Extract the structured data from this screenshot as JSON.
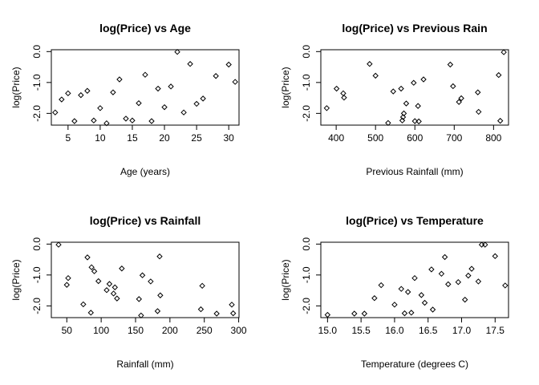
{
  "chart_data": [
    {
      "type": "scatter",
      "title": "log(Price) vs Age",
      "xlabel": "Age (years)",
      "ylabel": "log(Price)",
      "xlim": [
        2.4,
        31.6
      ],
      "ylim": [
        -2.38,
        0.06
      ],
      "xticks": [
        5,
        10,
        15,
        20,
        25,
        30
      ],
      "yticks": [
        -2.0,
        -1.0,
        0.0
      ],
      "ytick_labels": [
        "-2.0",
        "-1.0",
        "0.0"
      ],
      "points": [
        {
          "x": 3,
          "y": -1.97
        },
        {
          "x": 4,
          "y": -1.55
        },
        {
          "x": 5,
          "y": -1.35
        },
        {
          "x": 6,
          "y": -2.25
        },
        {
          "x": 7,
          "y": -1.41
        },
        {
          "x": 8,
          "y": -1.27
        },
        {
          "x": 9,
          "y": -2.23
        },
        {
          "x": 10,
          "y": -1.83
        },
        {
          "x": 11,
          "y": -2.32
        },
        {
          "x": 12,
          "y": -1.32
        },
        {
          "x": 13,
          "y": -0.9
        },
        {
          "x": 14,
          "y": -2.17
        },
        {
          "x": 15,
          "y": -2.23
        },
        {
          "x": 16,
          "y": -1.67
        },
        {
          "x": 17,
          "y": -0.75
        },
        {
          "x": 18,
          "y": -2.25
        },
        {
          "x": 19,
          "y": -1.2
        },
        {
          "x": 20,
          "y": -1.8
        },
        {
          "x": 21,
          "y": -1.13
        },
        {
          "x": 22,
          "y": -0.01
        },
        {
          "x": 23,
          "y": -1.97
        },
        {
          "x": 24,
          "y": -0.4
        },
        {
          "x": 25,
          "y": -1.69
        },
        {
          "x": 26,
          "y": -1.52
        },
        {
          "x": 28,
          "y": -0.79
        },
        {
          "x": 30,
          "y": -0.42
        },
        {
          "x": 31,
          "y": -0.98
        }
      ]
    },
    {
      "type": "scatter",
      "title": "log(Price) vs Previous Rain",
      "xlabel": "Previous Rainfall (mm)",
      "ylabel": "log(Price)",
      "xlim": [
        361,
        838
      ],
      "ylim": [
        -2.38,
        0.06
      ],
      "xticks": [
        400,
        500,
        600,
        700,
        800
      ],
      "yticks": [
        -2.0,
        -1.0,
        0.0
      ],
      "ytick_labels": [
        "-2.0",
        "-1.0",
        "0.0"
      ],
      "points": [
        {
          "x": 376,
          "y": -1.83
        },
        {
          "x": 401,
          "y": -1.2
        },
        {
          "x": 418,
          "y": -1.35
        },
        {
          "x": 420,
          "y": -1.49
        },
        {
          "x": 485,
          "y": -0.4
        },
        {
          "x": 500,
          "y": -0.78
        },
        {
          "x": 532,
          "y": -2.31
        },
        {
          "x": 545,
          "y": -1.29
        },
        {
          "x": 565,
          "y": -1.2
        },
        {
          "x": 568,
          "y": -2.23
        },
        {
          "x": 570,
          "y": -2.12
        },
        {
          "x": 572,
          "y": -2.0
        },
        {
          "x": 578,
          "y": -1.68
        },
        {
          "x": 597,
          "y": -1.01
        },
        {
          "x": 600,
          "y": -2.25
        },
        {
          "x": 608,
          "y": -1.76
        },
        {
          "x": 610,
          "y": -2.26
        },
        {
          "x": 622,
          "y": -0.9
        },
        {
          "x": 690,
          "y": -0.42
        },
        {
          "x": 697,
          "y": -1.12
        },
        {
          "x": 712,
          "y": -1.63
        },
        {
          "x": 718,
          "y": -1.51
        },
        {
          "x": 760,
          "y": -1.32
        },
        {
          "x": 762,
          "y": -1.95
        },
        {
          "x": 813,
          "y": -0.76
        },
        {
          "x": 817,
          "y": -2.24
        },
        {
          "x": 826,
          "y": -0.02
        }
      ]
    },
    {
      "type": "scatter",
      "title": "log(Price) vs Rainfall",
      "xlabel": "Rainfall (mm)",
      "ylabel": "log(Price)",
      "xlim": [
        27.5,
        300.5
      ],
      "ylim": [
        -2.38,
        0.06
      ],
      "xticks": [
        50,
        100,
        150,
        200,
        250,
        300
      ],
      "yticks": [
        -2.0,
        -1.0,
        0.0
      ],
      "ytick_labels": [
        "-2.0",
        "-1.0",
        "0.0"
      ],
      "points": [
        {
          "x": 38,
          "y": -0.02
        },
        {
          "x": 50,
          "y": -1.32
        },
        {
          "x": 52,
          "y": -1.1
        },
        {
          "x": 74,
          "y": -1.95
        },
        {
          "x": 80,
          "y": -0.43
        },
        {
          "x": 85,
          "y": -2.22
        },
        {
          "x": 86,
          "y": -0.75
        },
        {
          "x": 90,
          "y": -0.88
        },
        {
          "x": 96,
          "y": -1.2
        },
        {
          "x": 108,
          "y": -1.49
        },
        {
          "x": 112,
          "y": -1.29
        },
        {
          "x": 118,
          "y": -1.6
        },
        {
          "x": 120,
          "y": -1.4
        },
        {
          "x": 123,
          "y": -1.76
        },
        {
          "x": 130,
          "y": -0.79
        },
        {
          "x": 155,
          "y": -1.78
        },
        {
          "x": 158,
          "y": -2.31
        },
        {
          "x": 160,
          "y": -1.01
        },
        {
          "x": 172,
          "y": -1.21
        },
        {
          "x": 182,
          "y": -2.17
        },
        {
          "x": 185,
          "y": -0.4
        },
        {
          "x": 186,
          "y": -1.66
        },
        {
          "x": 245,
          "y": -2.11
        },
        {
          "x": 247,
          "y": -1.35
        },
        {
          "x": 268,
          "y": -2.25
        },
        {
          "x": 290,
          "y": -1.96
        },
        {
          "x": 292,
          "y": -2.24
        }
      ]
    },
    {
      "type": "scatter",
      "title": "log(Price) vs Temperature",
      "xlabel": "Temperature (degrees C)",
      "ylabel": "log(Price)",
      "xlim": [
        14.9,
        17.7
      ],
      "ylim": [
        -2.38,
        0.06
      ],
      "xticks": [
        15.0,
        15.5,
        16.0,
        16.5,
        17.0,
        17.5
      ],
      "xtick_labels": [
        "15.0",
        "15.5",
        "16.0",
        "16.5",
        "17.0",
        "17.5"
      ],
      "yticks": [
        -2.0,
        -1.0,
        0.0
      ],
      "ytick_labels": [
        "-2.0",
        "-1.0",
        "0.0"
      ],
      "points": [
        {
          "x": 15.0,
          "y": -2.29
        },
        {
          "x": 15.4,
          "y": -2.25
        },
        {
          "x": 15.55,
          "y": -2.25
        },
        {
          "x": 15.7,
          "y": -1.75
        },
        {
          "x": 15.8,
          "y": -1.33
        },
        {
          "x": 16.0,
          "y": -1.96
        },
        {
          "x": 16.1,
          "y": -1.45
        },
        {
          "x": 16.15,
          "y": -2.24
        },
        {
          "x": 16.2,
          "y": -1.55
        },
        {
          "x": 16.25,
          "y": -2.22
        },
        {
          "x": 16.3,
          "y": -1.1
        },
        {
          "x": 16.4,
          "y": -1.65
        },
        {
          "x": 16.45,
          "y": -1.9
        },
        {
          "x": 16.55,
          "y": -0.82
        },
        {
          "x": 16.57,
          "y": -2.12
        },
        {
          "x": 16.7,
          "y": -0.96
        },
        {
          "x": 16.75,
          "y": -0.42
        },
        {
          "x": 16.8,
          "y": -1.3
        },
        {
          "x": 16.95,
          "y": -1.23
        },
        {
          "x": 17.05,
          "y": -1.8
        },
        {
          "x": 17.1,
          "y": -1.02
        },
        {
          "x": 17.15,
          "y": -0.8
        },
        {
          "x": 17.25,
          "y": -1.21
        },
        {
          "x": 17.3,
          "y": -0.02
        },
        {
          "x": 17.35,
          "y": -0.02
        },
        {
          "x": 17.5,
          "y": -0.39
        },
        {
          "x": 17.65,
          "y": -1.34
        }
      ]
    }
  ]
}
